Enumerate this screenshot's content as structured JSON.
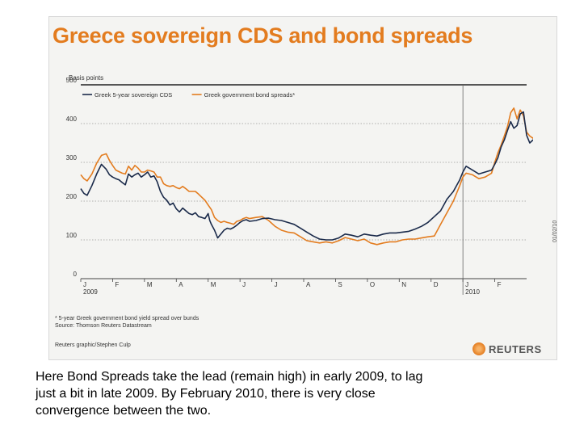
{
  "chart_data": {
    "type": "line",
    "title": "Greece sovereign CDS and bond spreads",
    "ylabel": "Basis points",
    "ylim": [
      0,
      500
    ],
    "yticks": [
      0,
      100,
      200,
      300,
      400,
      500
    ],
    "xlim": [
      0,
      14
    ],
    "month_labels": [
      "J",
      "F",
      "M",
      "A",
      "M",
      "J",
      "J",
      "A",
      "S",
      "O",
      "N",
      "D",
      "J",
      "F"
    ],
    "year_labels": [
      {
        "label": "2009",
        "x": 0
      },
      {
        "label": "2010",
        "x": 12
      }
    ],
    "vline_x": 12,
    "grid": "dotted horizontal",
    "legend_position": "top-left",
    "series": [
      {
        "name": "Greek 5-year sovereign CDS",
        "color": "#1a2a4a",
        "points": [
          [
            0,
            232
          ],
          [
            0.1,
            220
          ],
          [
            0.2,
            215
          ],
          [
            0.35,
            240
          ],
          [
            0.5,
            270
          ],
          [
            0.65,
            295
          ],
          [
            0.8,
            282
          ],
          [
            0.9,
            268
          ],
          [
            1.0,
            262
          ],
          [
            1.1,
            258
          ],
          [
            1.2,
            255
          ],
          [
            1.3,
            248
          ],
          [
            1.4,
            242
          ],
          [
            1.5,
            270
          ],
          [
            1.6,
            262
          ],
          [
            1.7,
            268
          ],
          [
            1.8,
            272
          ],
          [
            1.9,
            262
          ],
          [
            2.0,
            268
          ],
          [
            2.1,
            275
          ],
          [
            2.2,
            262
          ],
          [
            2.3,
            265
          ],
          [
            2.4,
            250
          ],
          [
            2.5,
            225
          ],
          [
            2.6,
            210
          ],
          [
            2.7,
            202
          ],
          [
            2.8,
            190
          ],
          [
            2.9,
            195
          ],
          [
            3.0,
            180
          ],
          [
            3.1,
            172
          ],
          [
            3.2,
            182
          ],
          [
            3.3,
            175
          ],
          [
            3.4,
            168
          ],
          [
            3.5,
            165
          ],
          [
            3.6,
            170
          ],
          [
            3.7,
            160
          ],
          [
            3.8,
            158
          ],
          [
            3.9,
            155
          ],
          [
            4.0,
            168
          ],
          [
            4.05,
            150
          ],
          [
            4.1,
            140
          ],
          [
            4.2,
            125
          ],
          [
            4.3,
            105
          ],
          [
            4.4,
            115
          ],
          [
            4.5,
            125
          ],
          [
            4.6,
            130
          ],
          [
            4.7,
            128
          ],
          [
            4.8,
            132
          ],
          [
            4.9,
            138
          ],
          [
            5.0,
            145
          ],
          [
            5.1,
            150
          ],
          [
            5.2,
            152
          ],
          [
            5.3,
            148
          ],
          [
            5.5,
            150
          ],
          [
            5.7,
            155
          ],
          [
            5.9,
            156
          ],
          [
            6.1,
            152
          ],
          [
            6.3,
            150
          ],
          [
            6.5,
            145
          ],
          [
            6.7,
            140
          ],
          [
            6.9,
            130
          ],
          [
            7.1,
            120
          ],
          [
            7.3,
            110
          ],
          [
            7.5,
            102
          ],
          [
            7.7,
            100
          ],
          [
            7.9,
            100
          ],
          [
            8.1,
            105
          ],
          [
            8.3,
            115
          ],
          [
            8.5,
            112
          ],
          [
            8.7,
            108
          ],
          [
            8.9,
            115
          ],
          [
            9.1,
            112
          ],
          [
            9.3,
            110
          ],
          [
            9.5,
            115
          ],
          [
            9.7,
            118
          ],
          [
            9.9,
            118
          ],
          [
            10.1,
            120
          ],
          [
            10.3,
            122
          ],
          [
            10.5,
            128
          ],
          [
            10.7,
            135
          ],
          [
            10.9,
            145
          ],
          [
            11.1,
            160
          ],
          [
            11.3,
            175
          ],
          [
            11.5,
            205
          ],
          [
            11.7,
            225
          ],
          [
            11.9,
            255
          ],
          [
            12.0,
            275
          ],
          [
            12.1,
            290
          ],
          [
            12.3,
            280
          ],
          [
            12.5,
            270
          ],
          [
            12.7,
            275
          ],
          [
            12.9,
            280
          ],
          [
            13.0,
            295
          ],
          [
            13.1,
            312
          ],
          [
            13.2,
            340
          ],
          [
            13.3,
            358
          ],
          [
            13.4,
            382
          ],
          [
            13.5,
            405
          ],
          [
            13.6,
            388
          ],
          [
            13.7,
            395
          ],
          [
            13.8,
            425
          ],
          [
            13.9,
            430
          ],
          [
            14.0,
            370
          ],
          [
            14.1,
            350
          ],
          [
            14.2,
            358
          ],
          [
            14.4,
            352
          ],
          [
            14.6,
            395
          ]
        ]
      },
      {
        "name": "Greek government bond spreads*",
        "color": "#e37c1f",
        "points": [
          [
            0,
            268
          ],
          [
            0.1,
            258
          ],
          [
            0.2,
            252
          ],
          [
            0.35,
            270
          ],
          [
            0.5,
            298
          ],
          [
            0.65,
            318
          ],
          [
            0.8,
            322
          ],
          [
            0.9,
            305
          ],
          [
            1.0,
            292
          ],
          [
            1.1,
            280
          ],
          [
            1.2,
            276
          ],
          [
            1.3,
            272
          ],
          [
            1.4,
            270
          ],
          [
            1.5,
            290
          ],
          [
            1.6,
            280
          ],
          [
            1.7,
            292
          ],
          [
            1.8,
            285
          ],
          [
            1.9,
            275
          ],
          [
            2.0,
            275
          ],
          [
            2.1,
            280
          ],
          [
            2.2,
            278
          ],
          [
            2.3,
            275
          ],
          [
            2.4,
            262
          ],
          [
            2.5,
            262
          ],
          [
            2.6,
            245
          ],
          [
            2.7,
            240
          ],
          [
            2.8,
            238
          ],
          [
            2.9,
            240
          ],
          [
            3.0,
            235
          ],
          [
            3.1,
            232
          ],
          [
            3.2,
            238
          ],
          [
            3.3,
            232
          ],
          [
            3.4,
            225
          ],
          [
            3.5,
            225
          ],
          [
            3.6,
            225
          ],
          [
            3.7,
            218
          ],
          [
            3.8,
            210
          ],
          [
            3.9,
            202
          ],
          [
            4.0,
            190
          ],
          [
            4.1,
            178
          ],
          [
            4.2,
            158
          ],
          [
            4.3,
            150
          ],
          [
            4.4,
            145
          ],
          [
            4.5,
            148
          ],
          [
            4.6,
            145
          ],
          [
            4.7,
            143
          ],
          [
            4.8,
            140
          ],
          [
            4.9,
            148
          ],
          [
            5.0,
            150
          ],
          [
            5.1,
            155
          ],
          [
            5.2,
            158
          ],
          [
            5.3,
            155
          ],
          [
            5.5,
            158
          ],
          [
            5.7,
            160
          ],
          [
            5.9,
            150
          ],
          [
            6.1,
            135
          ],
          [
            6.3,
            125
          ],
          [
            6.5,
            120
          ],
          [
            6.7,
            118
          ],
          [
            6.9,
            108
          ],
          [
            7.1,
            98
          ],
          [
            7.3,
            95
          ],
          [
            7.5,
            92
          ],
          [
            7.7,
            95
          ],
          [
            7.9,
            92
          ],
          [
            8.1,
            98
          ],
          [
            8.3,
            106
          ],
          [
            8.5,
            102
          ],
          [
            8.7,
            98
          ],
          [
            8.9,
            102
          ],
          [
            9.1,
            92
          ],
          [
            9.3,
            88
          ],
          [
            9.5,
            92
          ],
          [
            9.7,
            95
          ],
          [
            9.9,
            95
          ],
          [
            10.1,
            100
          ],
          [
            10.3,
            102
          ],
          [
            10.5,
            102
          ],
          [
            10.7,
            105
          ],
          [
            10.9,
            108
          ],
          [
            11.1,
            110
          ],
          [
            11.3,
            140
          ],
          [
            11.5,
            170
          ],
          [
            11.7,
            200
          ],
          [
            11.9,
            240
          ],
          [
            12.0,
            262
          ],
          [
            12.1,
            272
          ],
          [
            12.3,
            268
          ],
          [
            12.5,
            258
          ],
          [
            12.7,
            262
          ],
          [
            12.9,
            272
          ],
          [
            13.0,
            300
          ],
          [
            13.1,
            325
          ],
          [
            13.2,
            345
          ],
          [
            13.3,
            368
          ],
          [
            13.4,
            392
          ],
          [
            13.5,
            428
          ],
          [
            13.6,
            440
          ],
          [
            13.7,
            412
          ],
          [
            13.8,
            435
          ],
          [
            13.9,
            420
          ],
          [
            14.0,
            378
          ],
          [
            14.1,
            368
          ],
          [
            14.2,
            362
          ],
          [
            14.4,
            382
          ],
          [
            14.6,
            410
          ]
        ]
      }
    ]
  },
  "footnote": [
    "* 5-year Greek government bond yield spread over bunds",
    "Source: Thomson Reuters Datastream"
  ],
  "credit": "Reuters graphic/Stephen Culp",
  "logo_text": "REUTERS",
  "side_code": "01/02/10",
  "caption": [
    "Here Bond Spreads take the lead (remain high) in early 2009, to lag",
    "just a bit in late 2009.  By February 2010, there is very close",
    "convergence between the two."
  ]
}
